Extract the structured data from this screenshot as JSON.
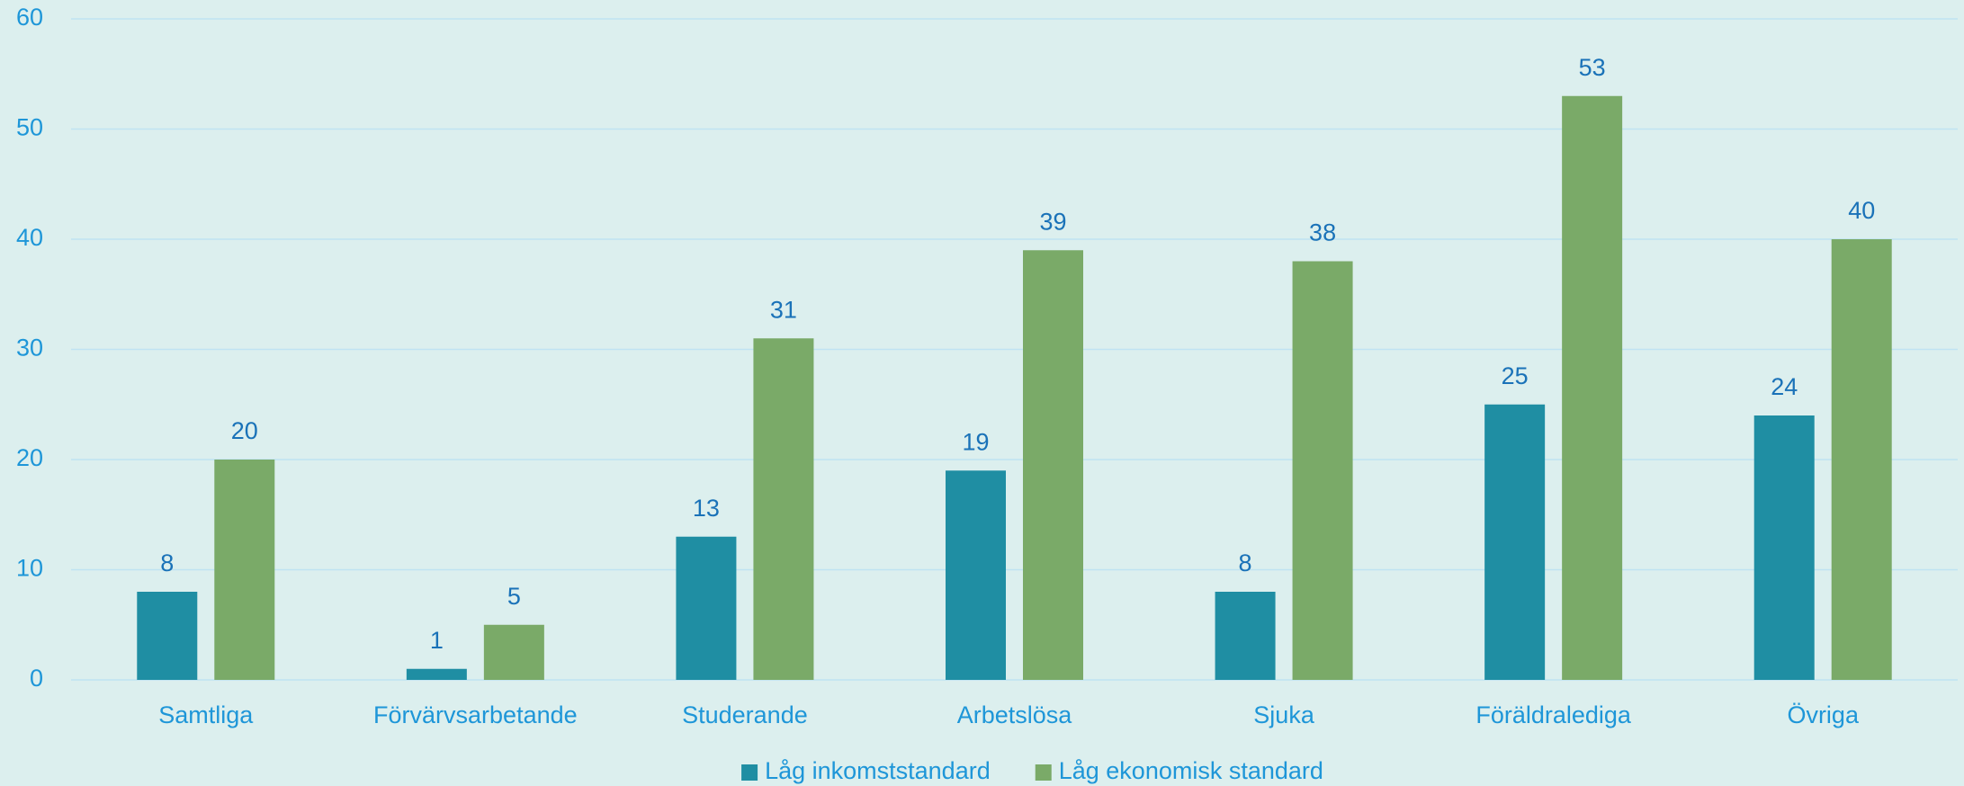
{
  "chart_data": {
    "type": "bar",
    "categories": [
      "Samtliga",
      "Förvärvsarbetande",
      "Studerande",
      "Arbetslösa",
      "Sjuka",
      "Föräldralediga",
      "Övriga"
    ],
    "series": [
      {
        "name": "Låg inkomststandard",
        "color": "#1f8ea3",
        "values": [
          8,
          1,
          13,
          19,
          8,
          25,
          24
        ]
      },
      {
        "name": "Låg ekonomisk standard",
        "color": "#7aaa68",
        "values": [
          20,
          5,
          31,
          39,
          38,
          53,
          40
        ]
      }
    ],
    "ylim": [
      0,
      60
    ],
    "yticks": [
      0,
      10,
      20,
      30,
      40,
      50,
      60
    ],
    "grid": true,
    "legend": "bottom"
  }
}
